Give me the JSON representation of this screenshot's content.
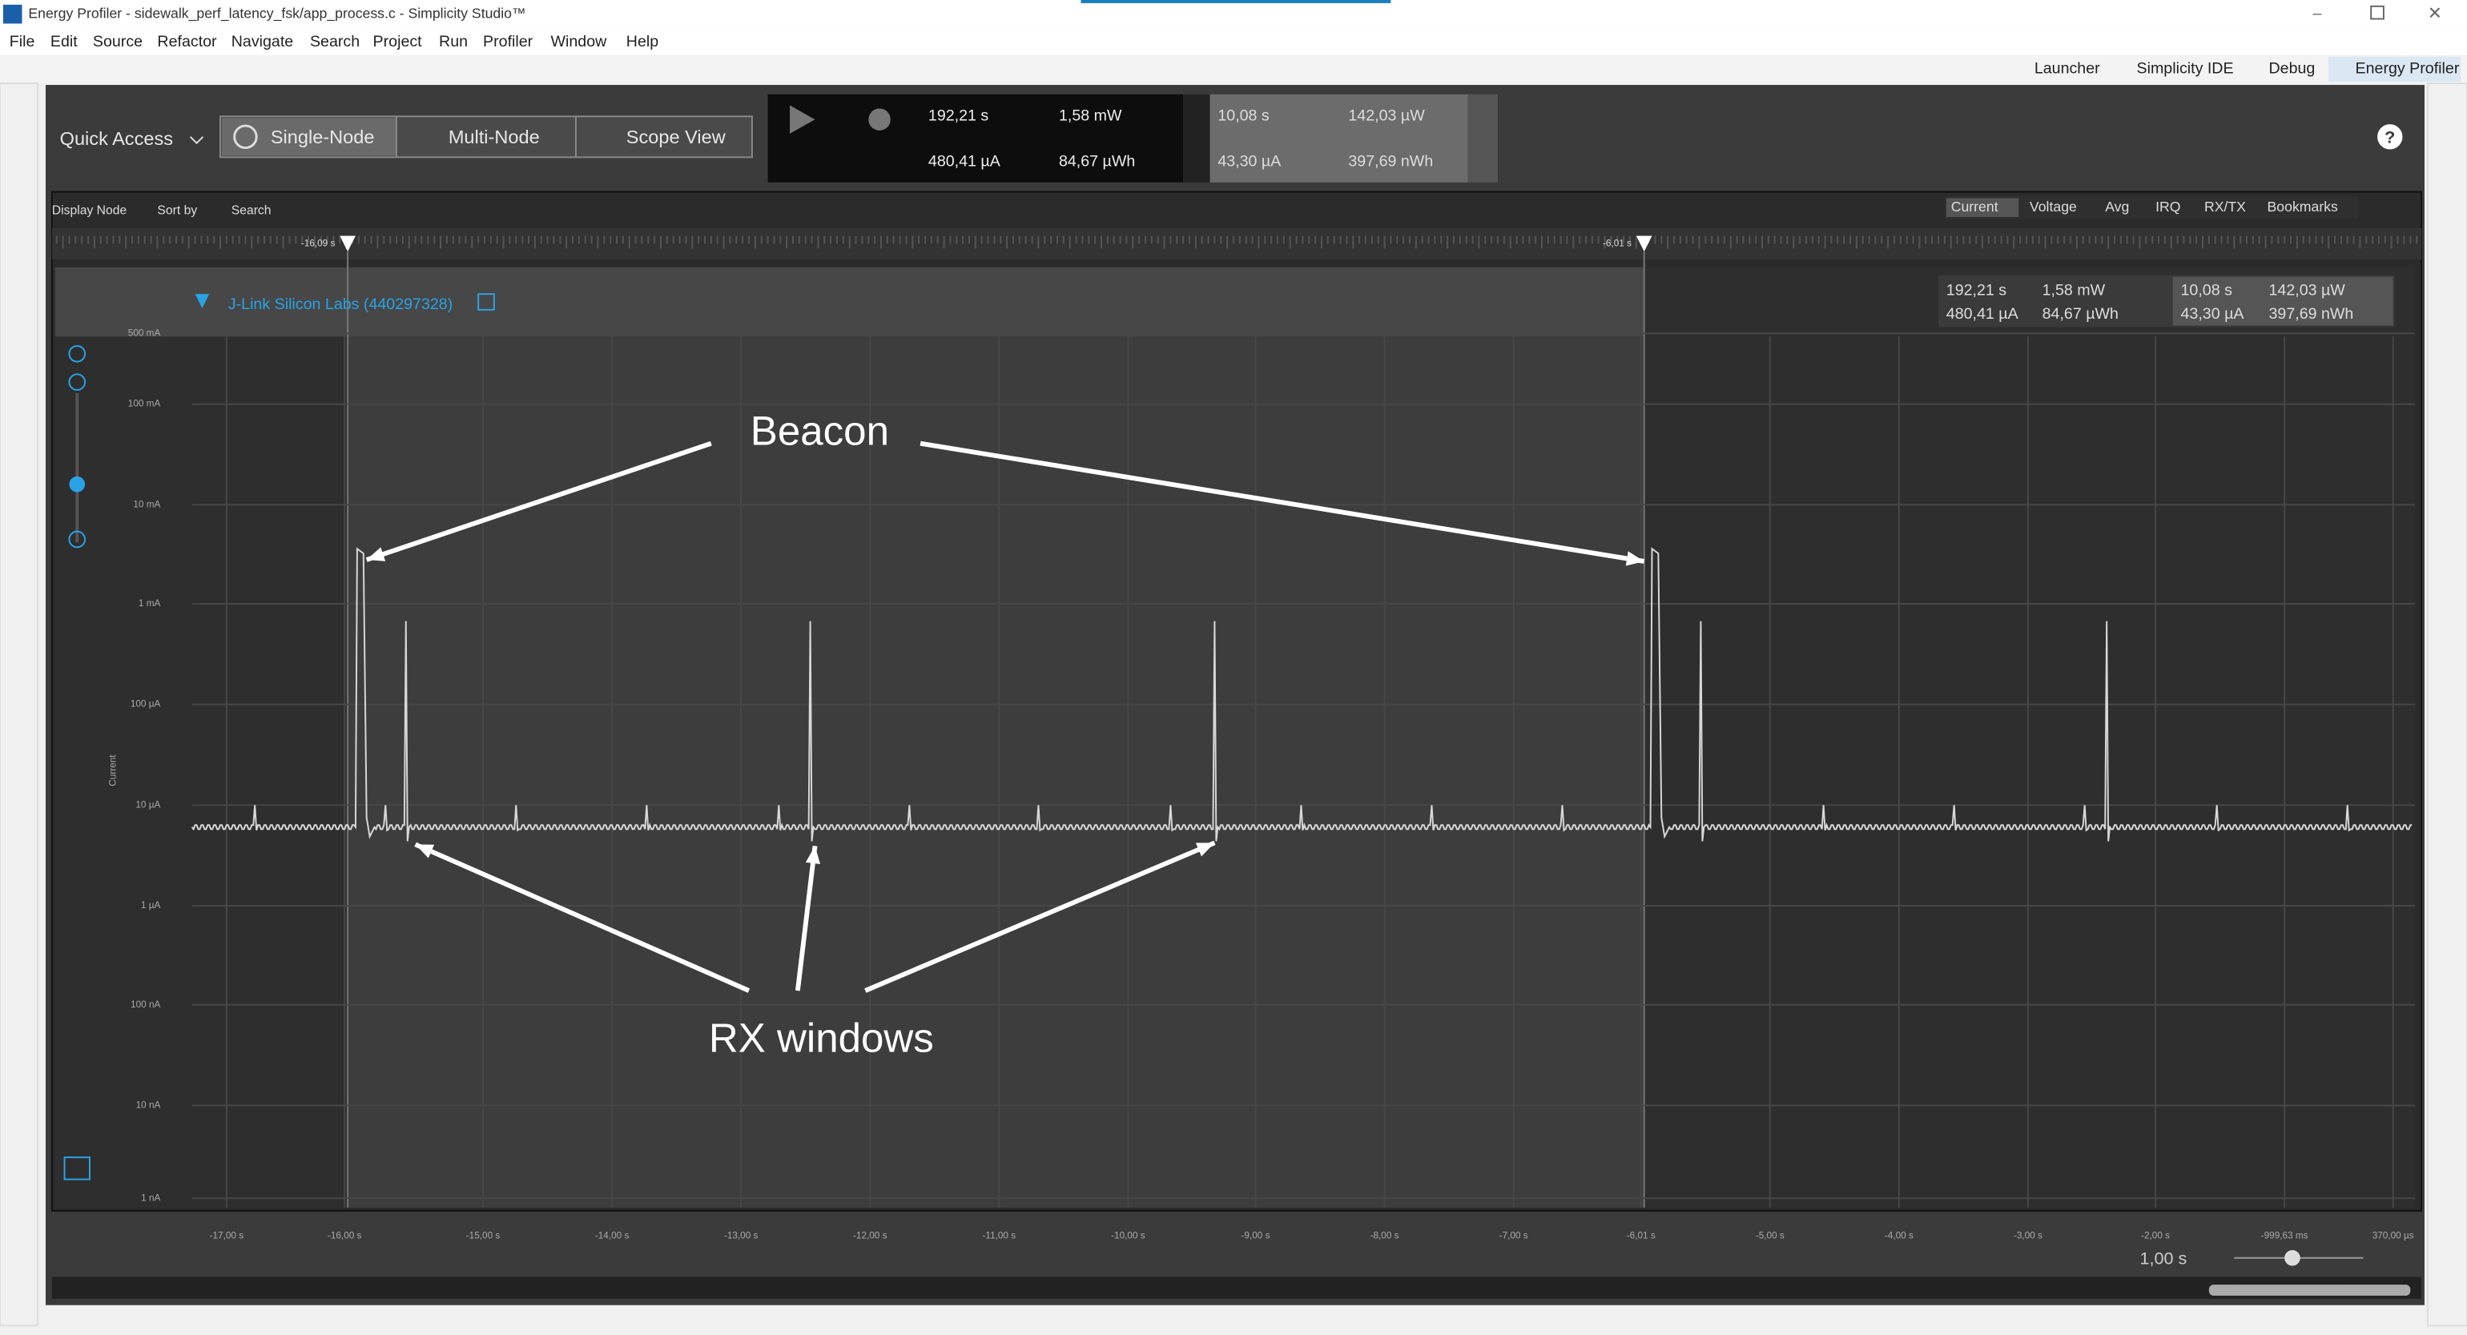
{
  "window": {
    "title": "Energy Profiler - sidewalk_perf_latency_fsk/app_process.c - Simplicity Studio™"
  },
  "menu": [
    "File",
    "Edit",
    "Source",
    "Refactor",
    "Navigate",
    "Search",
    "Project",
    "Run",
    "Profiler",
    "Window",
    "Help"
  ],
  "perspectives": [
    "Launcher",
    "Simplicity IDE",
    "Debug",
    "Energy Profiler"
  ],
  "toolbar": {
    "quick_access": "Quick Access",
    "modes": [
      "Single-Node",
      "Multi-Node",
      "Scope View"
    ]
  },
  "readouts": {
    "time": "192,21 s",
    "current": "480,41 µA",
    "power": "1,58 mW",
    "energy": "84,67 µWh",
    "sel_time": "10,08 s",
    "sel_current": "43,30 µA",
    "sel_power": "142,03 µW",
    "sel_energy": "397,69 nWh"
  },
  "filters": [
    "Display Node",
    "Sort by",
    "Search"
  ],
  "tabs": [
    "Current",
    "Voltage",
    "Avg",
    "IRQ",
    "RX/TX",
    "Bookmarks"
  ],
  "markers": [
    "-16,09 s",
    "-6,01 s"
  ],
  "node": "J-Link Silicon Labs (440297328)",
  "y_axis": {
    "title": "Current",
    "labels": [
      "500 mA",
      "100 mA",
      "10 mA",
      "1 mA",
      "100 µA",
      "10 µA",
      "1 µA",
      "100 nA",
      "10 nA",
      "1 nA"
    ]
  },
  "x_axis": {
    "labels": [
      "-17,00 s",
      "-16,00 s",
      "-15,00 s",
      "-14,00 s",
      "-13,00 s",
      "-12,00 s",
      "-11,00 s",
      "-10,00 s",
      "-9,00 s",
      "-8,00 s",
      "-7,00 s",
      "-6,01 s",
      "-5,00 s",
      "-4,00 s",
      "-3,00 s",
      "-2,00 s",
      "-999,63 ms",
      "370,00 µs"
    ]
  },
  "zoom": "1,00 s",
  "annotations": [
    "Beacon",
    "RX windows"
  ]
}
